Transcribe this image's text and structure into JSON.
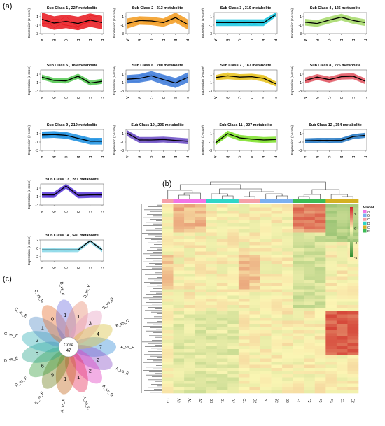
{
  "panel_labels": {
    "a": "(a)",
    "b": "(b)",
    "c": "(c)"
  },
  "chart_data": [
    {
      "type": "line",
      "panel": "a",
      "categories": [
        "A",
        "B",
        "C",
        "D",
        "E",
        "F"
      ],
      "ylabel": "Expression (z-score)",
      "subclasses": [
        {
          "title": "Sub Class  1 , 227 metabolite",
          "color": "#e8141b",
          "ylim": [
            -3,
            2
          ],
          "yticks": [
            "1",
            "-1",
            "-3"
          ],
          "values": [
            0.4,
            -0.5,
            -0.1,
            -0.6,
            0.2,
            -0.4
          ],
          "spread": [
            1.6,
            1.6,
            1.6,
            1.6,
            1.6,
            1.6
          ]
        },
        {
          "title": "Sub Class  2 , 213 metabolite",
          "color": "#f29a1d",
          "ylim": [
            -3,
            2
          ],
          "yticks": [
            "1",
            "-1",
            "-3"
          ],
          "values": [
            -0.6,
            0.1,
            0.0,
            -0.4,
            0.8,
            -0.8
          ],
          "spread": [
            1.2,
            1.0,
            1.0,
            1.0,
            1.2,
            1.2
          ]
        },
        {
          "title": "Sub Class  3 , 310 metabolite",
          "color": "#16c6e0",
          "ylim": [
            -3,
            2
          ],
          "yticks": [
            "1",
            "-1",
            "-3"
          ],
          "values": [
            -0.4,
            -0.4,
            -0.4,
            -0.4,
            -0.4,
            1.5
          ],
          "spread": [
            0.8,
            0.8,
            0.8,
            0.8,
            0.8,
            0.5
          ]
        },
        {
          "title": "Sub Class  4 , 126 metabolite",
          "color": "#a6d96a",
          "ylim": [
            -3,
            2
          ],
          "yticks": [
            "1",
            "-1",
            "-3"
          ],
          "values": [
            -0.3,
            -0.6,
            0.2,
            0.9,
            0.1,
            -0.4
          ],
          "spread": [
            0.8,
            0.8,
            0.8,
            0.8,
            0.8,
            0.8
          ]
        },
        {
          "title": "Sub Class  5 , 189 metabolite",
          "color": "#55c853",
          "ylim": [
            -3,
            2
          ],
          "yticks": [
            "1",
            "-1",
            "-3"
          ],
          "values": [
            0.3,
            -0.5,
            -0.6,
            0.5,
            -1.1,
            -0.7
          ],
          "spread": [
            0.6,
            0.6,
            0.6,
            0.6,
            0.6,
            0.6
          ]
        },
        {
          "title": "Sub Class  6 , 200 metabolite",
          "color": "#3a78d8",
          "ylim": [
            -3,
            2
          ],
          "yticks": [
            "1",
            "-1",
            "-3"
          ],
          "values": [
            -0.2,
            0.0,
            0.6,
            -0.3,
            -1.1,
            0.2
          ],
          "spread": [
            1.0,
            1.0,
            1.1,
            1.2,
            1.2,
            1.2
          ]
        },
        {
          "title": "Sub Class  7 , 187 metabolite",
          "color": "#e8c21b",
          "ylim": [
            -3,
            2
          ],
          "yticks": [
            "1",
            "-1",
            "-3"
          ],
          "values": [
            0.2,
            0.6,
            0.3,
            0.4,
            0.0,
            -1.3
          ],
          "spread": [
            0.6,
            0.8,
            0.7,
            0.7,
            0.8,
            0.6
          ]
        },
        {
          "title": "Sub Class  8 , 226 metabolite",
          "color": "#e05560",
          "ylim": [
            -3,
            2
          ],
          "yticks": [
            "1",
            "-1",
            "-3"
          ],
          "values": [
            -0.5,
            0.3,
            -0.3,
            0.4,
            0.5,
            -0.7
          ],
          "spread": [
            0.7,
            0.7,
            0.7,
            0.7,
            0.7,
            0.7
          ]
        },
        {
          "title": "Sub Class  9 , 219 metabolite",
          "color": "#1a8fe0",
          "ylim": [
            -3,
            2
          ],
          "yticks": [
            "1",
            "-1",
            "-3"
          ],
          "values": [
            0.7,
            0.8,
            0.6,
            -0.1,
            -0.8,
            -0.8
          ],
          "spread": [
            0.8,
            0.8,
            0.8,
            0.8,
            0.8,
            0.8
          ]
        },
        {
          "title": "Sub Class  10 , 205 metabolite",
          "color": "#6a4bc4",
          "ylim": [
            -3,
            2
          ],
          "yticks": [
            "1",
            "-1",
            "-3"
          ],
          "values": [
            1.1,
            -0.5,
            -0.5,
            -0.4,
            -0.6,
            -0.8
          ],
          "spread": [
            0.7,
            0.7,
            0.7,
            0.7,
            0.7,
            0.7
          ]
        },
        {
          "title": "Sub Class  11 , 227 metabolite",
          "color": "#7ee02a",
          "ylim": [
            -3,
            2
          ],
          "yticks": [
            "1",
            "-1",
            "-3"
          ],
          "values": [
            -1.2,
            1.0,
            0.0,
            -0.3,
            -0.5,
            -0.4
          ],
          "spread": [
            0.6,
            0.7,
            0.7,
            0.7,
            0.7,
            0.7
          ]
        },
        {
          "title": "Sub Class  12 , 354 metabolite",
          "color": "#2a7bc4",
          "ylim": [
            -3,
            2
          ],
          "yticks": [
            "1",
            "-1",
            "-3"
          ],
          "values": [
            -0.7,
            -0.6,
            -0.6,
            -0.6,
            0.3,
            0.6
          ],
          "spread": [
            0.6,
            0.6,
            0.6,
            0.6,
            0.6,
            0.6
          ]
        },
        {
          "title": "Sub Class  13 , 281 metabolite",
          "color": "#5a3ad8",
          "ylim": [
            -3,
            2
          ],
          "yticks": [
            "1",
            "-1",
            "-3"
          ],
          "values": [
            -0.6,
            -0.6,
            1.5,
            -0.7,
            -0.6,
            -0.6
          ],
          "spread": [
            0.7,
            0.7,
            0.6,
            0.7,
            0.7,
            0.7
          ]
        },
        {
          "title": "Sub Class  14 , 540 metabolite",
          "color": "#8ad8e8",
          "ylim": [
            -3,
            2
          ],
          "yticks": [
            "2",
            "0",
            "-2"
          ],
          "values": [
            -0.4,
            -0.4,
            -0.4,
            -0.4,
            1.8,
            -0.4
          ],
          "spread": [
            0.5,
            0.5,
            0.5,
            0.5,
            0.5,
            0.5
          ]
        }
      ]
    },
    {
      "type": "heatmap",
      "panel": "b",
      "columns": [
        "C3",
        "A3",
        "A1",
        "A2",
        "D3",
        "D1",
        "D2",
        "C1",
        "C2",
        "B1",
        "B2",
        "B3",
        "F1",
        "F2",
        "F3",
        "E3",
        "E1",
        "E2"
      ],
      "column_groups": [
        "C",
        "A",
        "A",
        "A",
        "D",
        "D",
        "D",
        "C",
        "C",
        "B",
        "B",
        "B",
        "F",
        "F",
        "F",
        "E",
        "E",
        "E"
      ],
      "legend": {
        "title": "group",
        "entries": [
          {
            "label": "A",
            "color": "#f274e6"
          },
          {
            "label": "B",
            "color": "#7cb0f0"
          },
          {
            "label": "C",
            "color": "#f5a0a8"
          },
          {
            "label": "D",
            "color": "#2fd6c8"
          },
          {
            "label": "E",
            "color": "#d4b022"
          },
          {
            "label": "F",
            "color": "#3cbb55"
          }
        ],
        "scale_ticks": [
          "2",
          "0",
          "-2",
          "-4"
        ],
        "scale_range": [
          -4,
          3
        ],
        "scale_colors": [
          "#2e8b2e",
          "#fcf6b4",
          "#d0202a"
        ]
      }
    },
    {
      "type": "flower",
      "panel": "c",
      "core_label": "Core",
      "core_value": 47,
      "petals": [
        {
          "label": "A_vs_F",
          "value": "7",
          "color": "#3a8fd8"
        },
        {
          "label": "A_vs_E",
          "value": "2",
          "color": "#8a54c8"
        },
        {
          "label": "A_vs_D",
          "value": "2",
          "color": "#e040c0"
        },
        {
          "label": "A_vs_C",
          "value": "1",
          "color": "#e8305a"
        },
        {
          "label": "A_vs_B",
          "value": "1",
          "color": "#c46a20"
        },
        {
          "label": "E_vs_F",
          "value": "9",
          "color": "#708020"
        },
        {
          "label": "D_vs_F",
          "value": "6",
          "color": "#3aa040"
        },
        {
          "label": "D_vs_E",
          "value": "0",
          "color": "#30a890"
        },
        {
          "label": "C_vs_F",
          "value": "2",
          "color": "#38b0b8"
        },
        {
          "label": "C_vs_E",
          "value": "1",
          "color": "#5890c8"
        },
        {
          "label": "C_vs_D",
          "value": "0",
          "color": "#e87030"
        },
        {
          "label": "B_vs_F",
          "value": "1",
          "color": "#7070e0"
        },
        {
          "label": "B_vs_E",
          "value": "1",
          "color": "#e88a70"
        },
        {
          "label": "B_vs_D",
          "value": "3",
          "color": "#e8a0c0"
        },
        {
          "label": "B_vs_C",
          "value": "4",
          "color": "#d8c040"
        }
      ]
    }
  ]
}
